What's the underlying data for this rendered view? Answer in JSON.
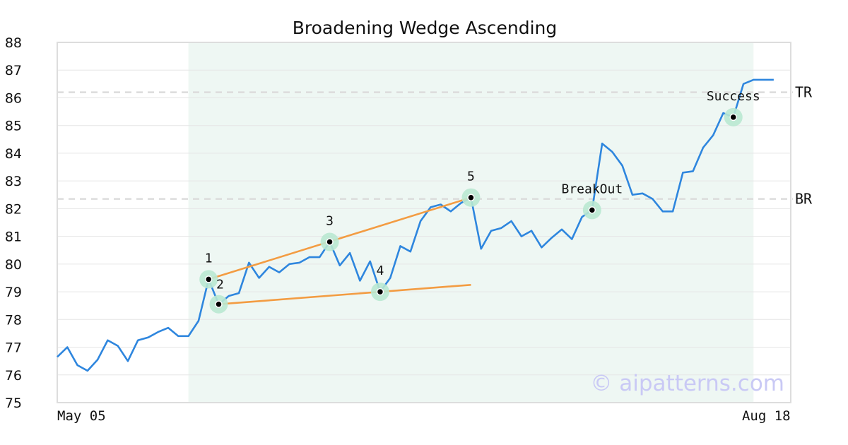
{
  "chart_data": {
    "type": "line",
    "title": "Broadening Wedge Ascending",
    "xlabel": "",
    "ylabel": "",
    "ylim": [
      75,
      88
    ],
    "yticks": [
      75,
      76,
      77,
      78,
      79,
      80,
      81,
      82,
      83,
      84,
      85,
      86,
      87,
      88
    ],
    "xlim": [
      0,
      73
    ],
    "x_tick_labels": [
      {
        "x": 0,
        "label": "May 05"
      },
      {
        "x": 70,
        "label": "Aug 18"
      }
    ],
    "grid": true,
    "highlight_range": [
      13,
      69
    ],
    "series": [
      {
        "color": "#2e86de",
        "x": [
          0,
          1,
          2,
          3,
          4,
          5,
          6,
          7,
          8,
          9,
          10,
          11,
          12,
          13,
          14,
          15,
          16,
          17,
          18,
          19,
          20,
          21,
          22,
          23,
          24,
          25,
          26,
          27,
          28,
          29,
          30,
          31,
          32,
          33,
          34,
          35,
          36,
          37,
          38,
          39,
          40,
          41,
          42,
          43,
          44,
          45,
          46,
          47,
          48,
          49,
          50,
          51,
          52,
          53,
          54,
          55,
          56,
          57,
          58,
          59,
          60,
          61,
          62,
          63,
          64,
          65,
          66,
          67,
          68,
          69,
          70,
          71
        ],
        "y": [
          76.65,
          77.0,
          76.35,
          76.15,
          76.55,
          77.25,
          77.05,
          76.5,
          77.25,
          77.35,
          77.55,
          77.7,
          77.4,
          77.4,
          77.95,
          79.45,
          78.55,
          78.85,
          78.95,
          80.05,
          79.5,
          79.9,
          79.7,
          80.0,
          80.05,
          80.25,
          80.25,
          80.8,
          79.95,
          80.4,
          79.4,
          80.1,
          79.0,
          79.5,
          80.65,
          80.45,
          81.55,
          82.05,
          82.15,
          81.9,
          82.2,
          82.4,
          80.55,
          81.2,
          81.3,
          81.55,
          81.0,
          81.2,
          80.6,
          80.95,
          81.25,
          80.9,
          81.7,
          81.95,
          84.35,
          84.05,
          83.55,
          82.5,
          82.55,
          82.35,
          81.9,
          81.9,
          83.3,
          83.35,
          84.2,
          84.65,
          85.45,
          85.3,
          86.5,
          86.65,
          86.65,
          86.65
        ]
      }
    ],
    "pattern_points": [
      {
        "label": "1",
        "x": 15,
        "y": 79.45
      },
      {
        "label": "2",
        "x": 16,
        "y": 78.55
      },
      {
        "label": "3",
        "x": 27,
        "y": 80.8
      },
      {
        "label": "4",
        "x": 32,
        "y": 79.0
      },
      {
        "label": "5",
        "x": 41,
        "y": 82.4
      },
      {
        "label": "BreakOut",
        "x": 53,
        "y": 81.95
      },
      {
        "label": "Success",
        "x": 67,
        "y": 85.3
      }
    ],
    "trend_lines": [
      {
        "color": "#f39c42",
        "x": [
          15,
          41
        ],
        "y": [
          79.45,
          82.4
        ]
      },
      {
        "color": "#f39c42",
        "x": [
          16,
          41
        ],
        "y": [
          78.55,
          79.25
        ]
      }
    ],
    "reference_lines": [
      {
        "label": "TR",
        "y": 86.2
      },
      {
        "label": "BR",
        "y": 82.35
      }
    ],
    "watermark": "© aipatterns.com"
  }
}
